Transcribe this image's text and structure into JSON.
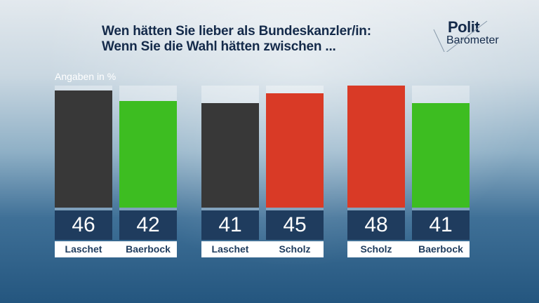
{
  "chart_data": {
    "type": "bar",
    "title": "Wen hätten Sie lieber als Bundeskanzler/in:",
    "subtitle": "Wenn Sie die Wahl hätten zwischen ...",
    "ylabel": "Angaben in %",
    "ylim": [
      0,
      48
    ],
    "groups": [
      {
        "bars": [
          {
            "name": "Laschet",
            "value": 46,
            "color": "#383838"
          },
          {
            "name": "Baerbock",
            "value": 42,
            "color": "#3dbd21"
          }
        ]
      },
      {
        "bars": [
          {
            "name": "Laschet",
            "value": 41,
            "color": "#383838"
          },
          {
            "name": "Scholz",
            "value": 45,
            "color": "#d93a26"
          }
        ]
      },
      {
        "bars": [
          {
            "name": "Scholz",
            "value": 48,
            "color": "#d93a26"
          },
          {
            "name": "Baerbock",
            "value": 41,
            "color": "#3dbd21"
          }
        ]
      }
    ]
  },
  "logo": {
    "line1": "Polit",
    "line2": "Barometer"
  }
}
